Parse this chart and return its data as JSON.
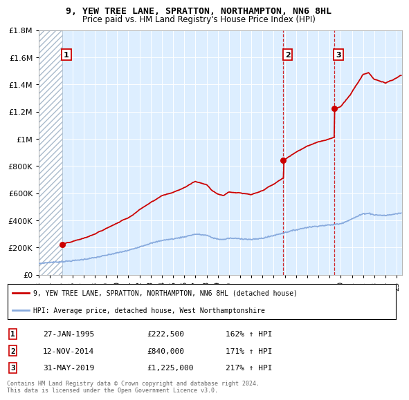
{
  "title": "9, YEW TREE LANE, SPRATTON, NORTHAMPTON, NN6 8HL",
  "subtitle": "Price paid vs. HM Land Registry's House Price Index (HPI)",
  "ylim": [
    0,
    1800000
  ],
  "xlim_start": 1993.0,
  "xlim_end": 2025.5,
  "ytick_vals": [
    0,
    200000,
    400000,
    600000,
    800000,
    1000000,
    1200000,
    1400000,
    1600000,
    1800000
  ],
  "ytick_labels": [
    "£0",
    "£200K",
    "£400K",
    "£600K",
    "£800K",
    "£1M",
    "£1.2M",
    "£1.4M",
    "£1.6M",
    "£1.8M"
  ],
  "xticks": [
    1993,
    1994,
    1995,
    1996,
    1997,
    1998,
    1999,
    2000,
    2001,
    2002,
    2003,
    2004,
    2005,
    2006,
    2007,
    2008,
    2009,
    2010,
    2011,
    2012,
    2013,
    2014,
    2015,
    2016,
    2017,
    2018,
    2019,
    2020,
    2021,
    2022,
    2023,
    2024,
    2025
  ],
  "sale_dates": [
    1995.07,
    2014.87,
    2019.41
  ],
  "sale_prices": [
    222500,
    840000,
    1225000
  ],
  "legend_red": "9, YEW TREE LANE, SPRATTON, NORTHAMPTON, NN6 8HL (detached house)",
  "legend_blue": "HPI: Average price, detached house, West Northamptonshire",
  "table_rows": [
    [
      "1",
      "27-JAN-1995",
      "£222,500",
      "162% ↑ HPI"
    ],
    [
      "2",
      "12-NOV-2014",
      "£840,000",
      "171% ↑ HPI"
    ],
    [
      "3",
      "31-MAY-2019",
      "£1,225,000",
      "217% ↑ HPI"
    ]
  ],
  "footnote1": "Contains HM Land Registry data © Crown copyright and database right 2024.",
  "footnote2": "This data is licensed under the Open Government Licence v3.0.",
  "red_color": "#cc0000",
  "blue_color": "#88aadd",
  "bg_color": "#ddeeff",
  "hatch_color": "#aabbcc"
}
